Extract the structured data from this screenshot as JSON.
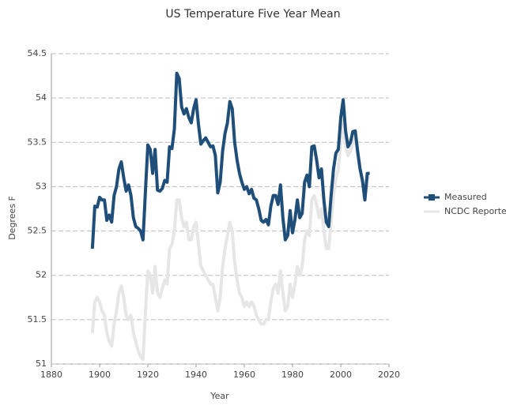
{
  "chart_data": {
    "type": "line",
    "title": "US Temperature Five Year Mean",
    "x_label": "Year",
    "y_label": "Degrees F",
    "x": [
      1897,
      1898,
      1899,
      1900,
      1901,
      1902,
      1903,
      1904,
      1905,
      1906,
      1907,
      1908,
      1909,
      1910,
      1911,
      1912,
      1913,
      1914,
      1915,
      1916,
      1917,
      1918,
      1919,
      1920,
      1921,
      1922,
      1923,
      1924,
      1925,
      1926,
      1927,
      1928,
      1929,
      1930,
      1931,
      1932,
      1933,
      1934,
      1935,
      1936,
      1937,
      1938,
      1939,
      1940,
      1941,
      1942,
      1943,
      1944,
      1945,
      1946,
      1947,
      1948,
      1949,
      1950,
      1951,
      1952,
      1953,
      1954,
      1955,
      1956,
      1957,
      1958,
      1959,
      1960,
      1961,
      1962,
      1963,
      1964,
      1965,
      1966,
      1967,
      1968,
      1969,
      1970,
      1971,
      1972,
      1973,
      1974,
      1975,
      1976,
      1977,
      1978,
      1979,
      1980,
      1981,
      1982,
      1983,
      1984,
      1985,
      1986,
      1987,
      1988,
      1989,
      1990,
      1991,
      1992,
      1993,
      1994,
      1995,
      1996,
      1997,
      1998,
      1999,
      2000,
      2001,
      2002,
      2003,
      2004,
      2005,
      2006,
      2007,
      2008,
      2009,
      2010,
      2011,
      2012
    ],
    "series": [
      {
        "name": "Measured",
        "color": "#1f4e79",
        "values": [
          52.3,
          52.78,
          52.77,
          52.88,
          52.85,
          52.85,
          52.62,
          52.68,
          52.6,
          52.9,
          53.0,
          53.2,
          53.28,
          53.1,
          52.95,
          53.02,
          52.9,
          52.65,
          52.55,
          52.53,
          52.5,
          52.4,
          52.95,
          53.47,
          53.42,
          53.15,
          53.42,
          52.96,
          52.95,
          52.98,
          53.07,
          53.05,
          53.45,
          53.43,
          53.65,
          54.28,
          54.22,
          53.9,
          53.82,
          53.88,
          53.78,
          53.72,
          53.88,
          53.98,
          53.7,
          53.48,
          53.52,
          53.55,
          53.5,
          53.45,
          53.46,
          53.35,
          52.93,
          53.05,
          53.4,
          53.6,
          53.72,
          53.96,
          53.88,
          53.5,
          53.3,
          53.15,
          53.05,
          52.97,
          53.0,
          52.92,
          52.97,
          52.87,
          52.85,
          52.75,
          52.62,
          52.6,
          52.63,
          52.57,
          52.78,
          52.9,
          52.9,
          52.8,
          53.02,
          52.65,
          52.4,
          52.45,
          52.73,
          52.48,
          52.63,
          52.85,
          52.65,
          52.7,
          53.05,
          53.13,
          53.0,
          53.45,
          53.46,
          53.3,
          53.1,
          53.2,
          52.85,
          52.6,
          52.55,
          52.9,
          53.2,
          53.38,
          53.42,
          53.78,
          53.98,
          53.63,
          53.45,
          53.5,
          53.62,
          53.63,
          53.4,
          53.2,
          53.07,
          52.85,
          53.15,
          53.15
        ]
      },
      {
        "name": "NCDC Reported",
        "color": "#e6e6e6",
        "values": [
          51.35,
          51.7,
          51.75,
          51.7,
          51.6,
          51.55,
          51.35,
          51.25,
          51.2,
          51.45,
          51.6,
          51.8,
          51.88,
          51.75,
          51.55,
          51.5,
          51.55,
          51.35,
          51.25,
          51.15,
          51.08,
          51.05,
          51.6,
          52.05,
          52.0,
          51.8,
          52.1,
          51.8,
          51.75,
          51.85,
          51.95,
          51.9,
          52.3,
          52.35,
          52.5,
          52.85,
          52.85,
          52.65,
          52.55,
          52.6,
          52.4,
          52.4,
          52.55,
          52.6,
          52.35,
          52.1,
          52.05,
          52.0,
          51.95,
          51.9,
          51.9,
          51.75,
          51.6,
          51.75,
          52.1,
          52.3,
          52.45,
          52.6,
          52.5,
          52.15,
          51.95,
          51.8,
          51.75,
          51.65,
          51.7,
          51.65,
          51.7,
          51.65,
          51.55,
          51.5,
          51.45,
          51.45,
          51.5,
          51.5,
          51.7,
          51.85,
          51.9,
          51.8,
          52.05,
          51.8,
          51.6,
          51.65,
          51.9,
          51.75,
          51.9,
          52.1,
          52.0,
          52.1,
          52.4,
          52.5,
          52.45,
          52.85,
          52.9,
          52.8,
          52.65,
          52.75,
          52.5,
          52.3,
          52.3,
          52.6,
          52.9,
          53.1,
          53.2,
          53.5,
          53.7,
          53.45,
          53.35,
          53.4,
          53.5,
          53.55,
          53.35,
          53.2,
          53.05,
          52.9,
          53.1,
          53.1
        ]
      }
    ],
    "xlim": [
      1880,
      2020
    ],
    "xticks": [
      1880,
      1900,
      1920,
      1940,
      1960,
      1980,
      2000,
      2020
    ],
    "ylim": [
      51,
      54.5
    ],
    "yticks": [
      51,
      51.5,
      52,
      52.5,
      53,
      53.5,
      54,
      54.5
    ],
    "grid": true,
    "legend": "right"
  }
}
